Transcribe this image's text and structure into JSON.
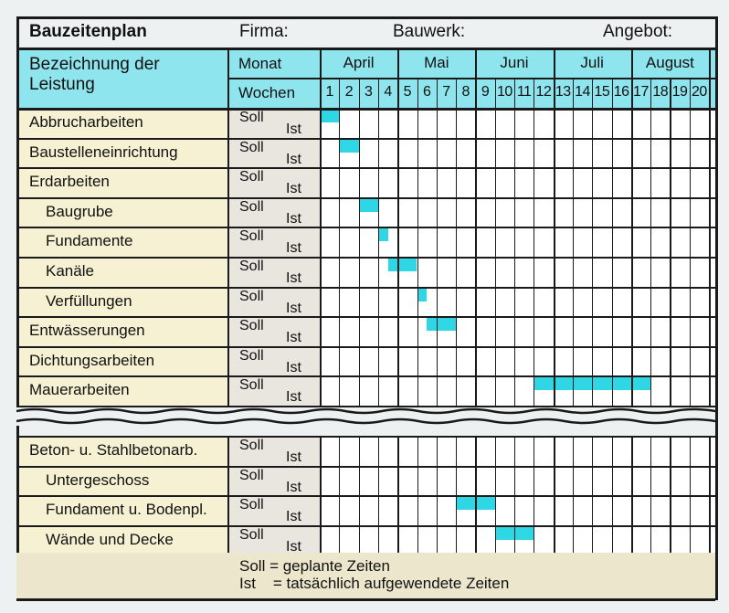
{
  "header": {
    "title": "Bauzeitenplan",
    "firma_label": "Firma:",
    "bauwerk_label": "Bauwerk:",
    "angebot_label": "Angebot:"
  },
  "columns": {
    "bezeichnung_line1": "Bezeichnung der",
    "bezeichnung_line2": "Leistung",
    "monat_label": "Monat",
    "wochen_label": "Wochen"
  },
  "months": [
    "April",
    "Mai",
    "Juni",
    "Juli",
    "August"
  ],
  "weeks": [
    "1",
    "2",
    "3",
    "4",
    "5",
    "6",
    "7",
    "8",
    "9",
    "10",
    "11",
    "12",
    "13",
    "14",
    "15",
    "16",
    "17",
    "18",
    "19",
    "20"
  ],
  "soll_label": "Soll",
  "ist_label": "Ist",
  "colors": {
    "bar": "#2fd7e4",
    "header_bg": "#8fe5ee",
    "label_bg": "#f5f1d2",
    "line": "#1a1a1a"
  },
  "tasks_top": [
    {
      "name": "Abbrucharbeiten",
      "indent": false,
      "soll": [
        [
          0,
          1
        ]
      ]
    },
    {
      "name": "Baustelleneinrichtung",
      "indent": false,
      "soll": [
        [
          1,
          2
        ]
      ]
    },
    {
      "name": "Erdarbeiten",
      "indent": false,
      "soll": []
    },
    {
      "name": "Baugrube",
      "indent": true,
      "soll": [
        [
          2,
          3
        ]
      ]
    },
    {
      "name": "Fundamente",
      "indent": true,
      "soll": [
        [
          3,
          3.5
        ]
      ]
    },
    {
      "name": "Kanäle",
      "indent": true,
      "soll": [
        [
          3.5,
          5
        ]
      ]
    },
    {
      "name": "Verfüllungen",
      "indent": true,
      "soll": [
        [
          5,
          5.5
        ]
      ]
    },
    {
      "name": "Entwässerungen",
      "indent": false,
      "soll": [
        [
          5.5,
          7
        ]
      ]
    },
    {
      "name": "Dichtungsarbeiten",
      "indent": false,
      "soll": []
    },
    {
      "name": "Mauerarbeiten",
      "indent": false,
      "soll": [
        [
          11,
          17
        ]
      ]
    }
  ],
  "tasks_bottom": [
    {
      "name": "Beton- u. Stahlbetonarb.",
      "indent": false,
      "soll": []
    },
    {
      "name": "Untergeschoss",
      "indent": true,
      "soll": []
    },
    {
      "name": "Fundament u. Bodenpl.",
      "indent": true,
      "soll": [
        [
          7,
          9
        ]
      ]
    },
    {
      "name": "Wände und Decke",
      "indent": true,
      "soll": [
        [
          9,
          11
        ]
      ]
    }
  ],
  "legend": {
    "line1": "Soll = geplante Zeiten",
    "line2": "Ist    = tatsächlich aufgewendete Zeiten"
  }
}
